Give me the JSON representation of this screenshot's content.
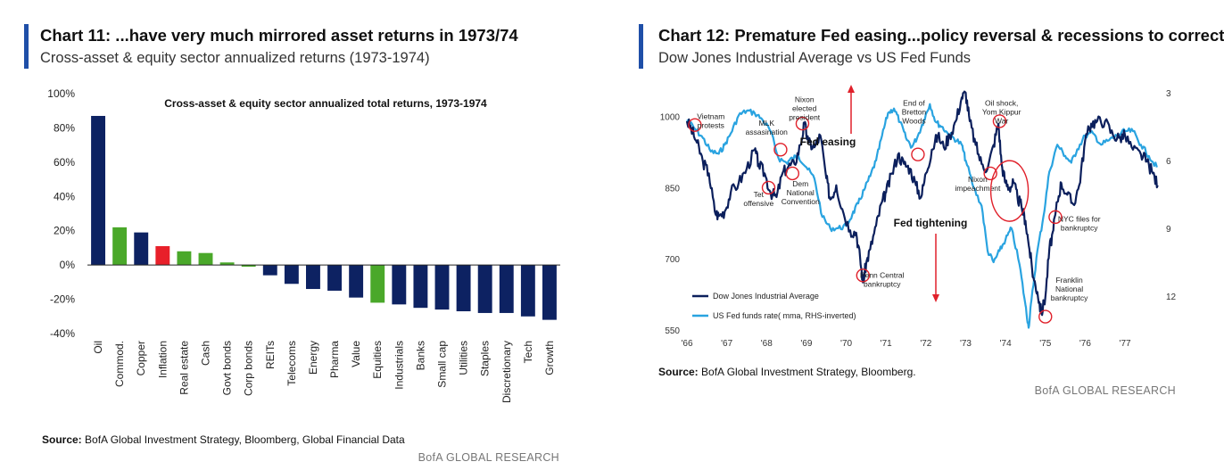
{
  "chart11": {
    "title": "Chart 11: ...have very much mirrored asset returns in 1973/74",
    "subtitle": "Cross-asset & equity sector annualized returns (1973-1974)",
    "source_label": "Source:",
    "source_text": "BofA Global Investment Strategy, Bloomberg, Global Financial Data",
    "brand": "BofA GLOBAL RESEARCH"
  },
  "chart12": {
    "title": "Chart 12: Premature Fed easing...policy reversal & recessions to correct",
    "subtitle": "Dow Jones Industrial Average vs US Fed Funds",
    "source_label": "Source:",
    "source_text": "BofA Global Investment Strategy, Bloomberg.",
    "brand": "BofA GLOBAL RESEARCH"
  },
  "colors": {
    "navy": "#0d2262",
    "green": "#4aa82a",
    "red": "#e8202a",
    "dow_line": "#0b1f5c",
    "fed_line": "#29a3e0",
    "circle": "#e0202a",
    "accent": "#1f4fa8"
  },
  "chart_data": [
    {
      "type": "bar",
      "title": "Cross-asset & equity sector annualized total returns, 1973-1974",
      "xlabel": "",
      "ylabel": "",
      "ylim": [
        -40,
        100
      ],
      "yticks": [
        "100%",
        "80%",
        "60%",
        "40%",
        "20%",
        "0%",
        "-20%",
        "-40%"
      ],
      "categories": [
        "Oil",
        "Commod.",
        "Copper",
        "Inflation",
        "Real estate",
        "Cash",
        "Govt bonds",
        "Corp bonds",
        "REITs",
        "Telecoms",
        "Energy",
        "Pharma",
        "Value",
        "Equities",
        "Industrials",
        "Banks",
        "Small cap",
        "Utilities",
        "Staples",
        "Discretionary",
        "Tech",
        "Growth"
      ],
      "values": [
        87,
        22,
        19,
        11,
        8,
        7,
        1.5,
        -1,
        -6,
        -11,
        -14,
        -15,
        -19,
        -22,
        -23,
        -25,
        -26,
        -27,
        -28,
        -28,
        -30,
        -32
      ],
      "bar_colors": [
        "navy",
        "green",
        "navy",
        "red",
        "green",
        "green",
        "green",
        "green",
        "navy",
        "navy",
        "navy",
        "navy",
        "navy",
        "green",
        "navy",
        "navy",
        "navy",
        "navy",
        "navy",
        "navy",
        "navy",
        "navy"
      ],
      "grid": false,
      "legend": "none"
    },
    {
      "type": "line",
      "title": "",
      "xlabel": "",
      "ylabel": "",
      "x_ticks": [
        "'66",
        "'67",
        "'68",
        "'69",
        "'70",
        "'71",
        "'72",
        "'73",
        "'74",
        "'75",
        "'76",
        "'77"
      ],
      "x_range": [
        1966,
        1977.85
      ],
      "y_left": {
        "range": [
          550,
          1050
        ],
        "ticks": [
          1000,
          850,
          700,
          550
        ]
      },
      "y_right": {
        "range": [
          3,
          13.5
        ],
        "inverted": true,
        "ticks": [
          3,
          6,
          9,
          12
        ]
      },
      "series": [
        {
          "name": "Dow Jones Industrial Average",
          "axis": "left",
          "points": [
            [
              1966.0,
              990
            ],
            [
              1966.1,
              975
            ],
            [
              1966.25,
              945
            ],
            [
              1966.4,
              905
            ],
            [
              1966.55,
              880
            ],
            [
              1966.7,
              800
            ],
            [
              1966.8,
              790
            ],
            [
              1966.95,
              800
            ],
            [
              1967.1,
              840
            ],
            [
              1967.3,
              860
            ],
            [
              1967.5,
              890
            ],
            [
              1967.7,
              930
            ],
            [
              1967.8,
              900
            ],
            [
              1967.95,
              880
            ],
            [
              1968.1,
              840
            ],
            [
              1968.25,
              830
            ],
            [
              1968.4,
              880
            ],
            [
              1968.55,
              895
            ],
            [
              1968.7,
              900
            ],
            [
              1968.85,
              940
            ],
            [
              1968.95,
              985
            ],
            [
              1969.05,
              945
            ],
            [
              1969.2,
              935
            ],
            [
              1969.35,
              960
            ],
            [
              1969.5,
              870
            ],
            [
              1969.6,
              825
            ],
            [
              1969.75,
              855
            ],
            [
              1969.9,
              805
            ],
            [
              1970.1,
              760
            ],
            [
              1970.25,
              755
            ],
            [
              1970.35,
              700
            ],
            [
              1970.42,
              650
            ],
            [
              1970.5,
              690
            ],
            [
              1970.6,
              720
            ],
            [
              1970.75,
              770
            ],
            [
              1970.9,
              820
            ],
            [
              1971.0,
              840
            ],
            [
              1971.15,
              880
            ],
            [
              1971.3,
              920
            ],
            [
              1971.45,
              900
            ],
            [
              1971.6,
              890
            ],
            [
              1971.75,
              855
            ],
            [
              1971.88,
              830
            ],
            [
              1972.0,
              880
            ],
            [
              1972.15,
              930
            ],
            [
              1972.3,
              960
            ],
            [
              1972.45,
              935
            ],
            [
              1972.6,
              960
            ],
            [
              1972.75,
              990
            ],
            [
              1972.9,
              1040
            ],
            [
              1973.0,
              1050
            ],
            [
              1973.1,
              990
            ],
            [
              1973.25,
              940
            ],
            [
              1973.4,
              900
            ],
            [
              1973.55,
              890
            ],
            [
              1973.7,
              940
            ],
            [
              1973.82,
              985
            ],
            [
              1973.9,
              900
            ],
            [
              1974.0,
              860
            ],
            [
              1974.1,
              850
            ],
            [
              1974.2,
              860
            ],
            [
              1974.3,
              830
            ],
            [
              1974.4,
              810
            ],
            [
              1974.5,
              780
            ],
            [
              1974.6,
              720
            ],
            [
              1974.7,
              660
            ],
            [
              1974.8,
              630
            ],
            [
              1974.9,
              585
            ],
            [
              1975.0,
              620
            ],
            [
              1975.1,
              720
            ],
            [
              1975.2,
              760
            ],
            [
              1975.3,
              820
            ],
            [
              1975.4,
              860
            ],
            [
              1975.55,
              835
            ],
            [
              1975.7,
              815
            ],
            [
              1975.85,
              855
            ],
            [
              1976.0,
              950
            ],
            [
              1976.15,
              985
            ],
            [
              1976.3,
              990
            ],
            [
              1976.5,
              990
            ],
            [
              1976.7,
              960
            ],
            [
              1976.85,
              955
            ],
            [
              1977.0,
              960
            ],
            [
              1977.2,
              930
            ],
            [
              1977.4,
              920
            ],
            [
              1977.55,
              905
            ],
            [
              1977.7,
              880
            ],
            [
              1977.82,
              855
            ]
          ]
        },
        {
          "name": "US Fed funds rate( mma, RHS-inverted)",
          "axis": "right",
          "points": [
            [
              1966.0,
              4.2
            ],
            [
              1966.2,
              4.6
            ],
            [
              1966.4,
              5.0
            ],
            [
              1966.6,
              5.6
            ],
            [
              1966.8,
              5.7
            ],
            [
              1966.95,
              5.3
            ],
            [
              1967.1,
              4.8
            ],
            [
              1967.3,
              4.0
            ],
            [
              1967.5,
              3.8
            ],
            [
              1967.7,
              3.9
            ],
            [
              1967.9,
              4.2
            ],
            [
              1968.1,
              4.7
            ],
            [
              1968.3,
              5.9
            ],
            [
              1968.5,
              6.1
            ],
            [
              1968.65,
              5.9
            ],
            [
              1968.8,
              5.8
            ],
            [
              1969.0,
              6.3
            ],
            [
              1969.2,
              6.8
            ],
            [
              1969.4,
              8.5
            ],
            [
              1969.6,
              9.0
            ],
            [
              1969.8,
              9.0
            ],
            [
              1970.0,
              8.9
            ],
            [
              1970.15,
              8.4
            ],
            [
              1970.3,
              7.9
            ],
            [
              1970.45,
              7.3
            ],
            [
              1970.6,
              6.7
            ],
            [
              1970.75,
              6.0
            ],
            [
              1970.9,
              4.9
            ],
            [
              1971.05,
              3.9
            ],
            [
              1971.2,
              3.7
            ],
            [
              1971.35,
              4.3
            ],
            [
              1971.5,
              5.0
            ],
            [
              1971.65,
              5.4
            ],
            [
              1971.8,
              4.9
            ],
            [
              1971.95,
              4.2
            ],
            [
              1972.1,
              3.5
            ],
            [
              1972.25,
              4.3
            ],
            [
              1972.4,
              4.5
            ],
            [
              1972.55,
              4.8
            ],
            [
              1972.7,
              5.0
            ],
            [
              1972.9,
              5.3
            ],
            [
              1973.0,
              6.0
            ],
            [
              1973.2,
              7.2
            ],
            [
              1973.4,
              8.0
            ],
            [
              1973.55,
              10.0
            ],
            [
              1973.7,
              10.5
            ],
            [
              1973.85,
              10.0
            ],
            [
              1974.0,
              9.5
            ],
            [
              1974.15,
              9.0
            ],
            [
              1974.35,
              10.6
            ],
            [
              1974.5,
              12.4
            ],
            [
              1974.58,
              13.4
            ],
            [
              1974.65,
              12.2
            ],
            [
              1974.8,
              10.0
            ],
            [
              1974.95,
              8.5
            ],
            [
              1975.1,
              6.5
            ],
            [
              1975.3,
              5.3
            ],
            [
              1975.5,
              5.8
            ],
            [
              1975.65,
              6.1
            ],
            [
              1975.8,
              5.5
            ],
            [
              1976.0,
              4.9
            ],
            [
              1976.2,
              4.8
            ],
            [
              1976.4,
              5.3
            ],
            [
              1976.6,
              5.1
            ],
            [
              1976.8,
              4.9
            ],
            [
              1977.0,
              4.7
            ],
            [
              1977.2,
              4.7
            ],
            [
              1977.4,
              5.3
            ],
            [
              1977.6,
              5.8
            ],
            [
              1977.8,
              6.3
            ]
          ]
        }
      ],
      "legend": "bottom-left",
      "annotations": [
        {
          "text": "Vietnam\nprotests",
          "tx": 1966.6,
          "ty": 995,
          "cx": 1966.2,
          "cy": 982
        },
        {
          "text": "MLK\nassasination",
          "tx": 1968.0,
          "ty": 980,
          "cx": 1968.35,
          "cy": 930
        },
        {
          "text": "Tet\noffensive",
          "tx": 1967.8,
          "ty": 830,
          "cx": 1968.05,
          "cy": 850
        },
        {
          "text": "Nixon\nelected\npresident",
          "tx": 1968.95,
          "ty": 1030,
          "cx": 1968.9,
          "cy": 985
        },
        {
          "text": "Dem\nNational\nConvention",
          "tx": 1968.85,
          "ty": 853,
          "cx": 1968.65,
          "cy": 880
        },
        {
          "text": "End of\nBretton\nWoods",
          "tx": 1971.7,
          "ty": 1023,
          "cx": 1971.8,
          "cy": 920
        },
        {
          "text": "Penn Central\nbankruptcy",
          "tx": 1970.9,
          "ty": 660,
          "cx": 1970.42,
          "cy": 665
        },
        {
          "text": "Oil shock,\nYom Kippur\nWar",
          "tx": 1973.9,
          "ty": 1023,
          "cx": 1973.85,
          "cy": 990
        },
        {
          "text": "Nixon\nimpeachment",
          "tx": 1973.3,
          "ty": 862,
          "cx": 1973.62,
          "cy": 880
        },
        {
          "text": "NYC files for\nbankruptcy",
          "tx": 1975.85,
          "ty": 778,
          "cx": 1975.25,
          "cy": 788
        },
        {
          "text": "Franklin\nNational\nbankruptcy",
          "tx": 1975.6,
          "ty": 650,
          "cx": 1975.0,
          "cy": 578
        }
      ],
      "text_labels": [
        "Fed easing",
        "Fed tightening"
      ]
    }
  ]
}
